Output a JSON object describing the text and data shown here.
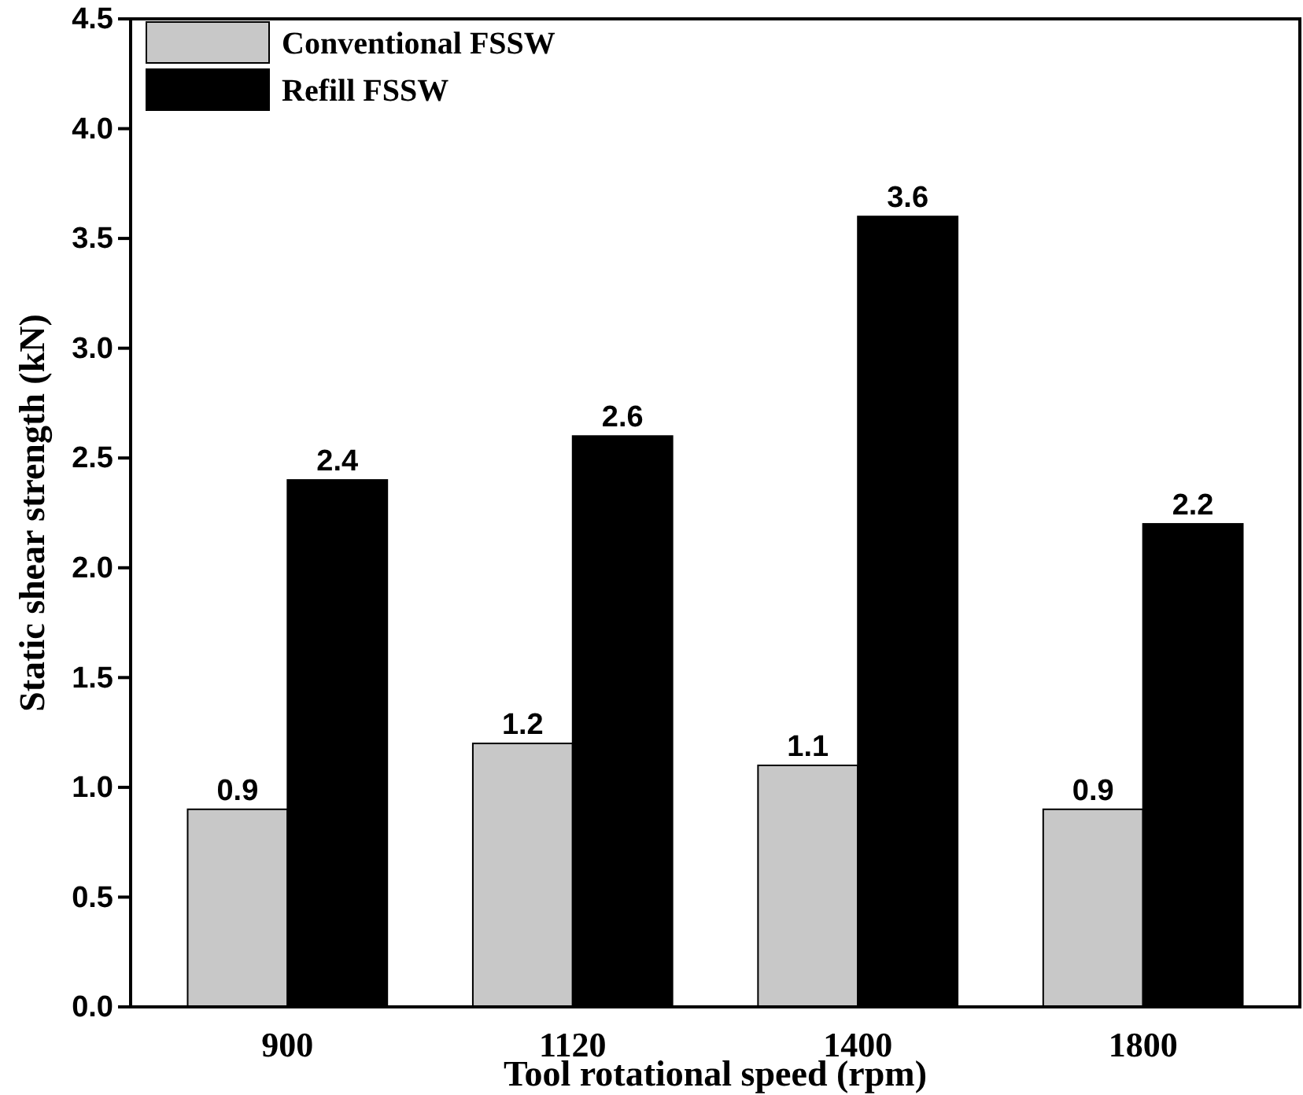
{
  "chart_data": {
    "type": "bar",
    "xlabel": "Tool rotational speed (rpm)",
    "ylabel": "Static shear strength (kN)",
    "categories": [
      "900",
      "1120",
      "1400",
      "1800"
    ],
    "series": [
      {
        "name": "Conventional FSSW",
        "color": "#c8c8c8",
        "values": [
          0.9,
          1.2,
          1.1,
          0.9
        ]
      },
      {
        "name": "Refill FSSW",
        "color": "#000000",
        "values": [
          2.4,
          2.6,
          3.6,
          2.2
        ]
      }
    ],
    "ylim": [
      0,
      4.5
    ],
    "yticks": [
      {
        "value": 0,
        "label": "0.0"
      },
      {
        "value": 0.5,
        "label": "0.5"
      },
      {
        "value": 1,
        "label": "1.0"
      },
      {
        "value": 1.5,
        "label": "1.5"
      },
      {
        "value": 2,
        "label": "2.0"
      },
      {
        "value": 2.5,
        "label": "2.5"
      },
      {
        "value": 3,
        "label": "3.0"
      },
      {
        "value": 3.5,
        "label": "3.5"
      },
      {
        "value": 4,
        "label": "4.0"
      },
      {
        "value": 4.5,
        "label": "4.5"
      }
    ],
    "data_labels": true,
    "legend": "top left",
    "grid": false
  }
}
